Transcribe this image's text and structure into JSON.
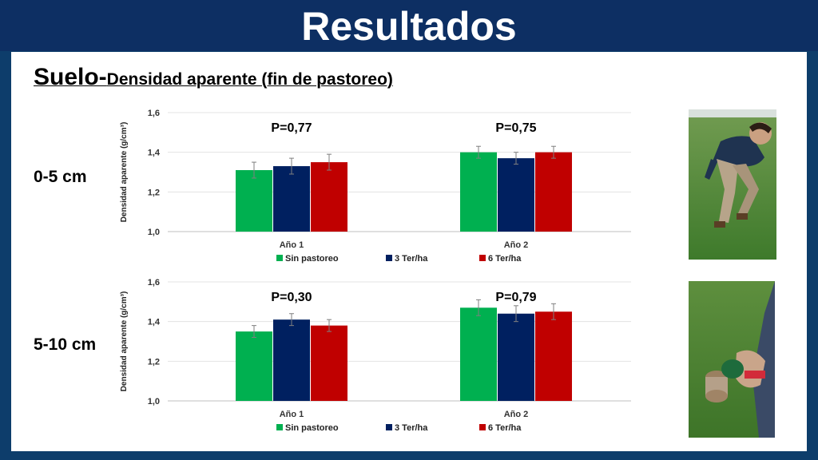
{
  "header": {
    "title": "Resultados"
  },
  "subtitle": {
    "main": "Suelo-",
    "detail": "Densidad aparente (fin de pastoreo)"
  },
  "legend": [
    "Sin pastoreo",
    "3 Ter/ha",
    "6 Ter/ha"
  ],
  "colors": {
    "Sin pastoreo": "#00b050",
    "3 Ter/ha": "#002060",
    "6 Ter/ha": "#c00000"
  },
  "chart_data": [
    {
      "type": "bar",
      "depth_label": "0-5 cm",
      "ylabel": "Densidad aparente (g/cm³)",
      "ylim": [
        1.0,
        1.6
      ],
      "yticks": [
        "1,0",
        "1,2",
        "1,4",
        "1,6"
      ],
      "categories": [
        "Año 1",
        "Año 2"
      ],
      "p_values": [
        "P=0,77",
        "P=0,75"
      ],
      "series": [
        {
          "name": "Sin pastoreo",
          "values": [
            1.31,
            1.4
          ],
          "errors": [
            0.04,
            0.03
          ]
        },
        {
          "name": "3 Ter/ha",
          "values": [
            1.33,
            1.37
          ],
          "errors": [
            0.04,
            0.03
          ]
        },
        {
          "name": "6 Ter/ha",
          "values": [
            1.35,
            1.4
          ],
          "errors": [
            0.04,
            0.03
          ]
        }
      ],
      "grid": true,
      "legend_position": "bottom"
    },
    {
      "type": "bar",
      "depth_label": "5-10 cm",
      "ylabel": "Densidad aparente (g/cm³)",
      "ylim": [
        1.0,
        1.6
      ],
      "yticks": [
        "1,0",
        "1,2",
        "1,4",
        "1,6"
      ],
      "categories": [
        "Año 1",
        "Año 2"
      ],
      "p_values": [
        "P=0,30",
        "P=0,79"
      ],
      "series": [
        {
          "name": "Sin pastoreo",
          "values": [
            1.35,
            1.47
          ],
          "errors": [
            0.03,
            0.04
          ]
        },
        {
          "name": "3 Ter/ha",
          "values": [
            1.41,
            1.44
          ],
          "errors": [
            0.03,
            0.04
          ]
        },
        {
          "name": "6 Ter/ha",
          "values": [
            1.38,
            1.45
          ],
          "errors": [
            0.03,
            0.04
          ]
        }
      ],
      "grid": true,
      "legend_position": "bottom"
    }
  ]
}
